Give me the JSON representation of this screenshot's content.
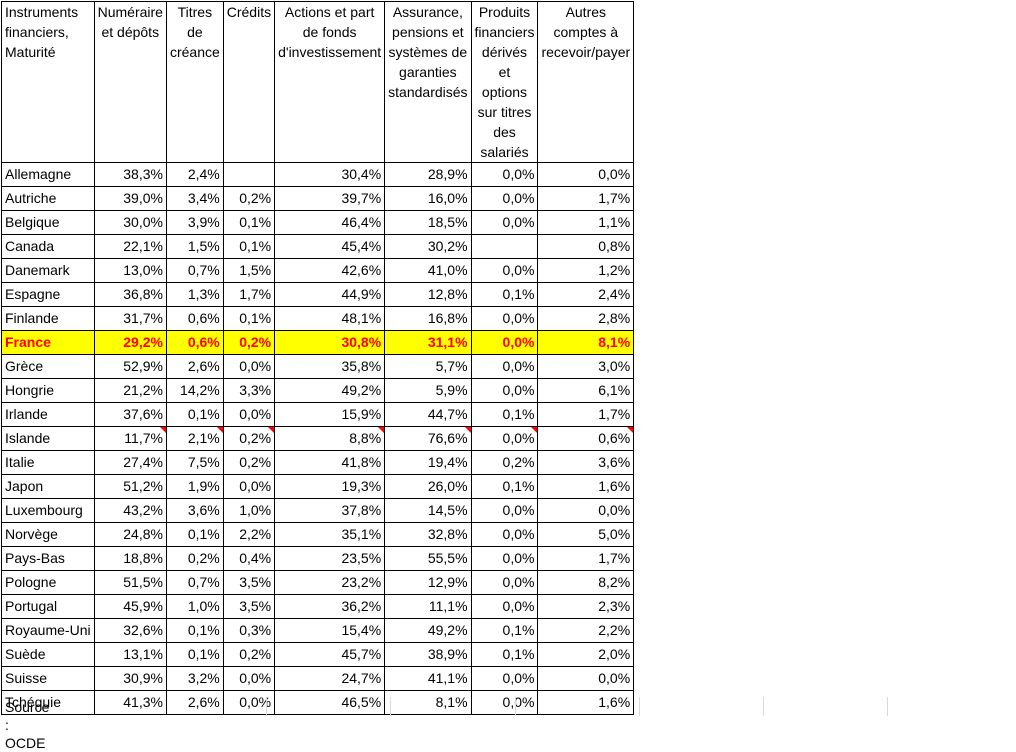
{
  "headers": [
    "Instruments financiers, Maturité",
    "Numéraire et dépôts",
    "Titres de créance",
    "Crédits",
    "Actions et part de fonds d'investissement",
    "Assurance, pensions et systèmes de garanties standardisés",
    "Produits financiers dérivés et options sur titres des salariés",
    "Autres comptes à recevoir/payer"
  ],
  "rows": [
    {
      "country": "Allemagne",
      "values": [
        "38,3%",
        "2,4%",
        "",
        "30,4%",
        "28,9%",
        "0,0%",
        "0,0%"
      ]
    },
    {
      "country": "Autriche",
      "values": [
        "39,0%",
        "3,4%",
        "0,2%",
        "39,7%",
        "16,0%",
        "0,0%",
        "1,7%"
      ]
    },
    {
      "country": "Belgique",
      "values": [
        "30,0%",
        "3,9%",
        "0,1%",
        "46,4%",
        "18,5%",
        "0,0%",
        "1,1%"
      ]
    },
    {
      "country": "Canada",
      "values": [
        "22,1%",
        "1,5%",
        "0,1%",
        "45,4%",
        "30,2%",
        "",
        "0,8%"
      ]
    },
    {
      "country": "Danemark",
      "values": [
        "13,0%",
        "0,7%",
        "1,5%",
        "42,6%",
        "41,0%",
        "0,0%",
        "1,2%"
      ]
    },
    {
      "country": "Espagne",
      "values": [
        "36,8%",
        "1,3%",
        "1,7%",
        "44,9%",
        "12,8%",
        "0,1%",
        "2,4%"
      ]
    },
    {
      "country": "Finlande",
      "values": [
        "31,7%",
        "0,6%",
        "0,1%",
        "48,1%",
        "16,8%",
        "0,0%",
        "2,8%"
      ]
    },
    {
      "country": "France",
      "values": [
        "29,2%",
        "0,6%",
        "0,2%",
        "30,8%",
        "31,1%",
        "0,0%",
        "8,1%"
      ],
      "highlight": true
    },
    {
      "country": "Grèce",
      "values": [
        "52,9%",
        "2,6%",
        "0,0%",
        "35,8%",
        "5,7%",
        "0,0%",
        "3,0%"
      ]
    },
    {
      "country": "Hongrie",
      "values": [
        "21,2%",
        "14,2%",
        "3,3%",
        "49,2%",
        "5,9%",
        "0,0%",
        "6,1%"
      ]
    },
    {
      "country": "Irlande",
      "values": [
        "37,6%",
        "0,1%",
        "0,0%",
        "15,9%",
        "44,7%",
        "0,1%",
        "1,7%"
      ]
    },
    {
      "country": "Islande",
      "values": [
        "11,7%",
        "2,1%",
        "0,2%",
        "8,8%",
        "76,6%",
        "0,0%",
        "0,6%"
      ],
      "flagged": true
    },
    {
      "country": "Italie",
      "values": [
        "27,4%",
        "7,5%",
        "0,2%",
        "41,8%",
        "19,4%",
        "0,2%",
        "3,6%"
      ]
    },
    {
      "country": "Japon",
      "values": [
        "51,2%",
        "1,9%",
        "0,0%",
        "19,3%",
        "26,0%",
        "0,1%",
        "1,6%"
      ]
    },
    {
      "country": "Luxembourg",
      "values": [
        "43,2%",
        "3,6%",
        "1,0%",
        "37,8%",
        "14,5%",
        "0,0%",
        "0,0%"
      ]
    },
    {
      "country": "Norvège",
      "values": [
        "24,8%",
        "0,1%",
        "2,2%",
        "35,1%",
        "32,8%",
        "0,0%",
        "5,0%"
      ]
    },
    {
      "country": "Pays-Bas",
      "values": [
        "18,8%",
        "0,2%",
        "0,4%",
        "23,5%",
        "55,5%",
        "0,0%",
        "1,7%"
      ]
    },
    {
      "country": "Pologne",
      "values": [
        "51,5%",
        "0,7%",
        "3,5%",
        "23,2%",
        "12,9%",
        "0,0%",
        "8,2%"
      ]
    },
    {
      "country": "Portugal",
      "values": [
        "45,9%",
        "1,0%",
        "3,5%",
        "36,2%",
        "11,1%",
        "0,0%",
        "2,3%"
      ]
    },
    {
      "country": "Royaume-Uni",
      "values": [
        "32,6%",
        "0,1%",
        "0,3%",
        "15,4%",
        "49,2%",
        "0,1%",
        "2,2%"
      ]
    },
    {
      "country": "Suède",
      "values": [
        "13,1%",
        "0,1%",
        "0,2%",
        "45,7%",
        "38,9%",
        "0,1%",
        "2,0%"
      ]
    },
    {
      "country": "Suisse",
      "values": [
        "30,9%",
        "3,2%",
        "0,0%",
        "24,7%",
        "41,1%",
        "0,0%",
        "0,0%"
      ]
    },
    {
      "country": "Tchéquie",
      "values": [
        "41,3%",
        "2,6%",
        "0,0%",
        "46,5%",
        "8,1%",
        "0,0%",
        "1,6%"
      ]
    }
  ],
  "source": "Source : OCDE",
  "colors": {
    "highlight_bg": "#ffff00",
    "highlight_text": "#ff0000",
    "comment_flag": "#ff0000"
  }
}
